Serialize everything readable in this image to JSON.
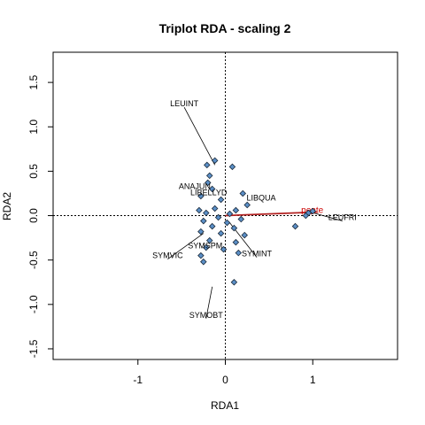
{
  "chart_data": {
    "type": "scatter",
    "title": "Triplot RDA - scaling 2",
    "xlabel": "RDA1",
    "ylabel": "RDA2",
    "xlim": [
      -1.97,
      1.97
    ],
    "ylim": [
      -1.62,
      1.84
    ],
    "x_ticks": [
      -1,
      0,
      1
    ],
    "y_ticks": [
      -1.5,
      -1.0,
      -0.5,
      0.0,
      0.5,
      1.0,
      1.5
    ],
    "x_tick_labels": [
      "-1",
      "0",
      "1"
    ],
    "y_tick_labels": [
      "-1.5",
      "-1.0",
      "-0.5",
      "0.0",
      "0.5",
      "1.0",
      "1.5"
    ],
    "reference_lines": {
      "x": 0,
      "y": 0,
      "style": "dotted"
    },
    "sites": [
      [
        -0.12,
        0.62
      ],
      [
        -0.21,
        0.57
      ],
      [
        0.08,
        0.55
      ],
      [
        -0.18,
        0.45
      ],
      [
        -0.2,
        0.37
      ],
      [
        -0.15,
        0.3
      ],
      [
        0.2,
        0.25
      ],
      [
        -0.28,
        0.22
      ],
      [
        -0.05,
        0.18
      ],
      [
        0.25,
        0.12
      ],
      [
        -0.12,
        0.08
      ],
      [
        -0.3,
        0.06
      ],
      [
        0.12,
        0.06
      ],
      [
        -0.22,
        0.03
      ],
      [
        0.05,
        0.02
      ],
      [
        -0.08,
        -0.02
      ],
      [
        0.18,
        -0.04
      ],
      [
        -0.25,
        -0.06
      ],
      [
        0.02,
        -0.08
      ],
      [
        -0.15,
        -0.12
      ],
      [
        0.1,
        -0.14
      ],
      [
        -0.28,
        -0.18
      ],
      [
        -0.05,
        -0.2
      ],
      [
        0.22,
        -0.22
      ],
      [
        -0.18,
        -0.28
      ],
      [
        0.12,
        -0.3
      ],
      [
        -0.22,
        -0.36
      ],
      [
        -0.02,
        -0.38
      ],
      [
        -0.28,
        -0.45
      ],
      [
        0.15,
        -0.42
      ],
      [
        -0.25,
        -0.52
      ],
      [
        0.1,
        -0.75
      ],
      [
        0.95,
        0.03
      ],
      [
        1.0,
        0.05
      ],
      [
        0.92,
        0.0
      ],
      [
        0.8,
        -0.12
      ]
    ],
    "species": [
      {
        "name": "LEUINT",
        "x": -0.47,
        "y": 1.26,
        "arrow": [
          -0.12,
          0.57
        ]
      },
      {
        "name": "ANAJUN",
        "x": -0.35,
        "y": 0.33,
        "arrow": null
      },
      {
        "name": "LIBELLYD",
        "x": -0.19,
        "y": 0.26,
        "arrow": null
      },
      {
        "name": "LIBQUA",
        "x": 0.41,
        "y": 0.2,
        "arrow": null
      },
      {
        "name": "SYMINT",
        "x": 0.36,
        "y": -0.43,
        "arrow": [
          0.05,
          -0.08
        ]
      },
      {
        "name": "SYMSPM",
        "x": -0.23,
        "y": -0.34,
        "arrow": null
      },
      {
        "name": "SYMVIC",
        "x": -0.66,
        "y": -0.45,
        "arrow": [
          -0.25,
          -0.2
        ]
      },
      {
        "name": "SYMOBT",
        "x": -0.22,
        "y": -1.12,
        "arrow": [
          -0.15,
          -0.8
        ]
      },
      {
        "name": "LEUFRI",
        "x": 1.34,
        "y": -0.02,
        "arrow": [
          0.97,
          0.04
        ]
      }
    ],
    "environmental_vectors": [
      {
        "name": "pente",
        "x": 1.05,
        "y": 0.04
      }
    ]
  }
}
